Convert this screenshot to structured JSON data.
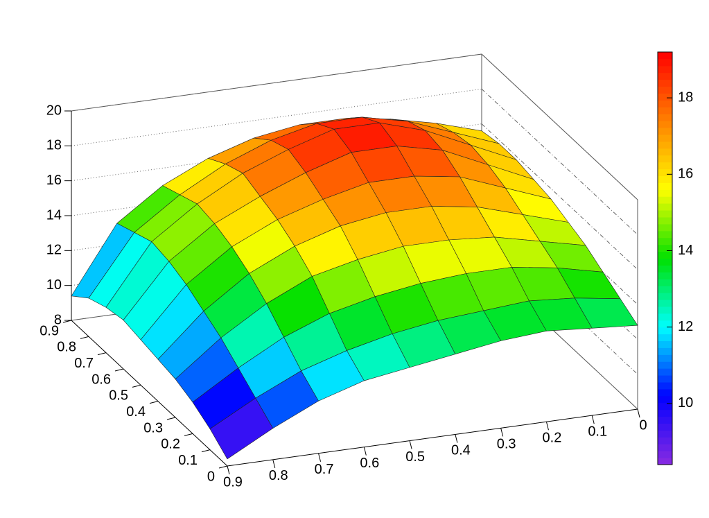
{
  "chart_data": {
    "type": "surface",
    "x": [
      0,
      0.1,
      0.2,
      0.3,
      0.4,
      0.5,
      0.6,
      0.7,
      0.8,
      0.9
    ],
    "y": [
      0,
      0.1,
      0.2,
      0.3,
      0.4,
      0.5,
      0.6,
      0.7,
      0.8,
      0.9
    ],
    "z": [
      [
        12.8,
        13.0,
        13.2,
        13.0,
        12.6,
        12.2,
        11.8,
        11.0,
        9.8,
        8.4
      ],
      [
        13.4,
        13.8,
        14.0,
        13.8,
        13.6,
        13.2,
        12.6,
        11.8,
        10.6,
        9.2
      ],
      [
        14.0,
        14.6,
        15.0,
        15.0,
        14.8,
        14.4,
        13.8,
        12.8,
        11.4,
        9.8
      ],
      [
        14.6,
        15.2,
        15.8,
        16.0,
        16.0,
        15.6,
        15.0,
        13.8,
        12.2,
        10.2
      ],
      [
        15.0,
        15.8,
        16.6,
        17.0,
        17.0,
        16.6,
        15.8,
        14.6,
        12.8,
        10.4
      ],
      [
        15.4,
        16.4,
        17.4,
        17.8,
        17.8,
        17.2,
        16.4,
        15.2,
        13.4,
        10.6
      ],
      [
        15.6,
        16.8,
        18.0,
        18.6,
        18.6,
        17.8,
        16.8,
        15.6,
        13.8,
        10.8
      ],
      [
        15.8,
        17.0,
        18.2,
        19.0,
        19.0,
        18.2,
        17.2,
        15.8,
        14.0,
        10.6
      ],
      [
        15.8,
        16.8,
        17.8,
        18.4,
        18.4,
        17.8,
        16.8,
        15.4,
        13.6,
        10.2
      ],
      [
        15.6,
        16.4,
        17.0,
        17.4,
        17.4,
        17.0,
        16.2,
        15.0,
        13.2,
        9.4
      ]
    ],
    "xlim": [
      0,
      0.9
    ],
    "ylim": [
      0,
      0.9
    ],
    "zlim": [
      8,
      20
    ],
    "xticks": [
      0,
      0.1,
      0.2,
      0.3,
      0.4,
      0.5,
      0.6,
      0.7,
      0.8,
      0.9
    ],
    "yticks": [
      0,
      0.1,
      0.2,
      0.3,
      0.4,
      0.5,
      0.6,
      0.7,
      0.8,
      0.9
    ],
    "zticks": [
      8,
      10,
      12,
      14,
      16,
      18,
      20
    ],
    "colorbar_lim": [
      8.4,
      19.2
    ],
    "colorbar_ticks": [
      10,
      12,
      14,
      16,
      18
    ],
    "colormap": [
      "#8a2be2",
      "#0000ff",
      "#00ffff",
      "#00e000",
      "#ffff00",
      "#ff8000",
      "#ff0000"
    ],
    "grid": true
  }
}
